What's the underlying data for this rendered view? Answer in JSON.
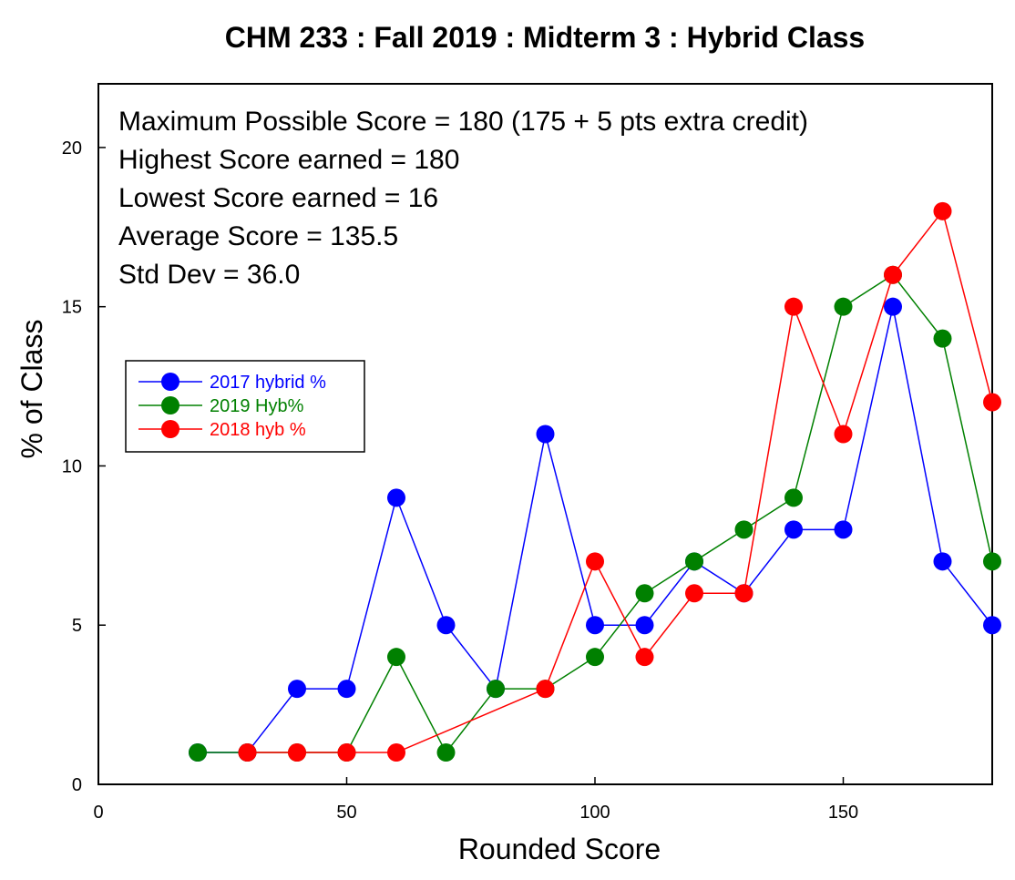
{
  "chart_data": {
    "type": "line",
    "title": "CHM 233 : Fall 2019 : Midterm 3 : Hybrid Class",
    "xlabel": "Rounded Score",
    "ylabel": "% of Class",
    "xlim": [
      0,
      180
    ],
    "ylim": [
      0,
      22
    ],
    "xticks": [
      0,
      50,
      100,
      150
    ],
    "yticks": [
      0,
      5,
      10,
      15,
      20
    ],
    "grid": false,
    "legend_position": "left-middle",
    "annotations": [
      "Maximum Possible Score = 180 (175 + 5 pts extra credit)",
      "Highest Score earned = 180",
      "Lowest Score earned = 16",
      "Average Score = 135.5",
      "Std Dev = 36.0"
    ],
    "series": [
      {
        "name": "2017 hybrid %",
        "color": "#0000ff",
        "x": [
          20,
          30,
          40,
          50,
          60,
          70,
          80,
          90,
          100,
          110,
          120,
          130,
          140,
          150,
          160,
          170,
          180
        ],
        "y": [
          1,
          1,
          3,
          3,
          9,
          5,
          3,
          11,
          5,
          5,
          7,
          6,
          8,
          8,
          15,
          7,
          5
        ]
      },
      {
        "name": "2019 Hyb%",
        "color": "#008000",
        "x": [
          20,
          30,
          40,
          50,
          60,
          70,
          80,
          90,
          100,
          110,
          120,
          130,
          140,
          150,
          160,
          170,
          180
        ],
        "y": [
          1,
          1,
          1,
          1,
          4,
          1,
          3,
          3,
          4,
          6,
          7,
          8,
          9,
          15,
          16,
          14,
          7
        ]
      },
      {
        "name": "2018 hyb %",
        "color": "#ff0000",
        "x": [
          30,
          40,
          50,
          60,
          90,
          100,
          110,
          120,
          130,
          140,
          150,
          160,
          170,
          180
        ],
        "y": [
          1,
          1,
          1,
          1,
          3,
          7,
          4,
          6,
          6,
          15,
          11,
          16,
          18,
          12
        ]
      }
    ]
  }
}
